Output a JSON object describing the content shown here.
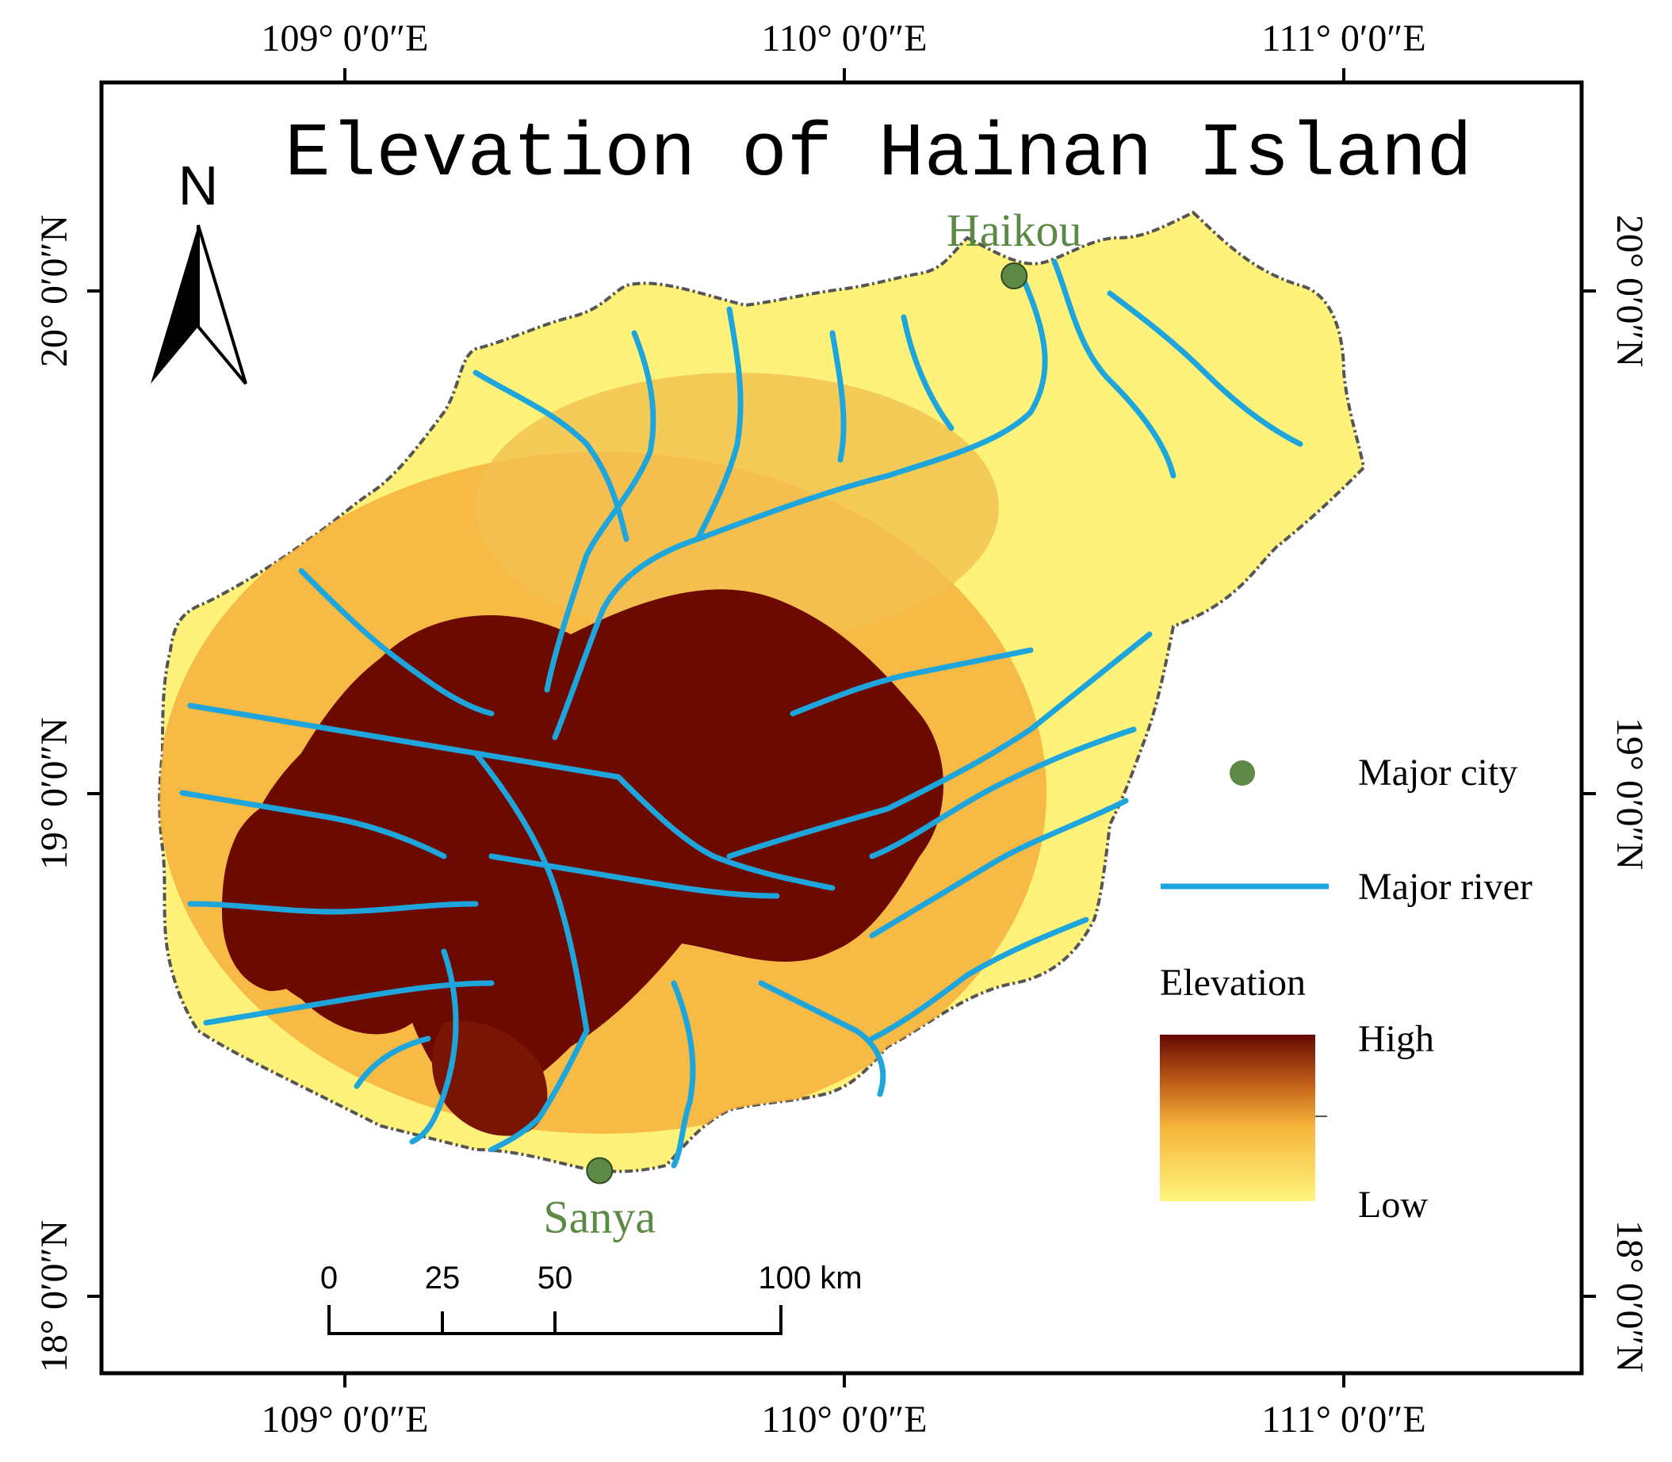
{
  "title": "Elevation of Hainan Island",
  "north_label": "N",
  "grid": {
    "longitudes": [
      {
        "value": 109,
        "label": "109° 0′0″E"
      },
      {
        "value": 110,
        "label": "110° 0′0″E"
      },
      {
        "value": 111,
        "label": "111° 0′0″E"
      }
    ],
    "latitudes": [
      {
        "value": 20,
        "label": "20° 0′0″N"
      },
      {
        "value": 19,
        "label": "19° 0′0″N"
      },
      {
        "value": 18,
        "label": "18° 0′0″N"
      }
    ]
  },
  "cities": [
    {
      "name": "Haikou",
      "lon": 110.34,
      "lat": 20.03
    },
    {
      "name": "Sanya",
      "lon": 109.51,
      "lat": 18.25
    }
  ],
  "legend": {
    "city_label": "Major city",
    "river_label": "Major river",
    "elevation_title": "Elevation",
    "high_label": "High",
    "low_label": "Low"
  },
  "scale_bar": {
    "ticks": [
      "0",
      "25",
      "50"
    ],
    "end_label": "100 km"
  },
  "colors": {
    "river": "#1ea6dc",
    "city": "#5c8a46",
    "city_label": "#5c8a46",
    "coast": "#555555",
    "elev_low": "#fff27a",
    "elev_mid": "#f2a528",
    "elev_high": "#6a0a00"
  }
}
